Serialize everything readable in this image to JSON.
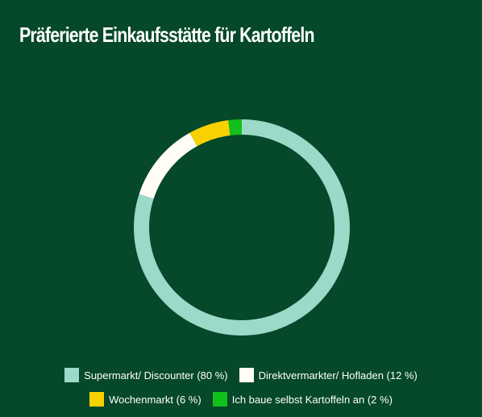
{
  "title": "Präferierte Einkaufsstätte für Kartoffeln",
  "chart_data": {
    "type": "pie",
    "variant": "donut",
    "title": "Präferierte Einkaufsstätte für Kartoffeln",
    "legend_position": "bottom",
    "series": [
      {
        "name": "Supermarkt/ Discounter",
        "value": 80,
        "label": "Supermarkt/ Discounter (80 %)",
        "color": "#9cd9c8"
      },
      {
        "name": "Direktvermarkter/ Hofladen",
        "value": 12,
        "label": "Direktvermarkter/ Hofladen (12 %)",
        "color": "#fffdf6"
      },
      {
        "name": "Wochenmarkt",
        "value": 6,
        "label": "Wochenmarkt (6 %)",
        "color": "#f7d200"
      },
      {
        "name": "Ich baue selbst Kartoffeln an",
        "value": 2,
        "label": "Ich baue selbst Kartoffeln an (2 %)",
        "color": "#10c01c"
      }
    ]
  },
  "colors": {
    "background": "#05482a",
    "text": "#ffffff"
  }
}
